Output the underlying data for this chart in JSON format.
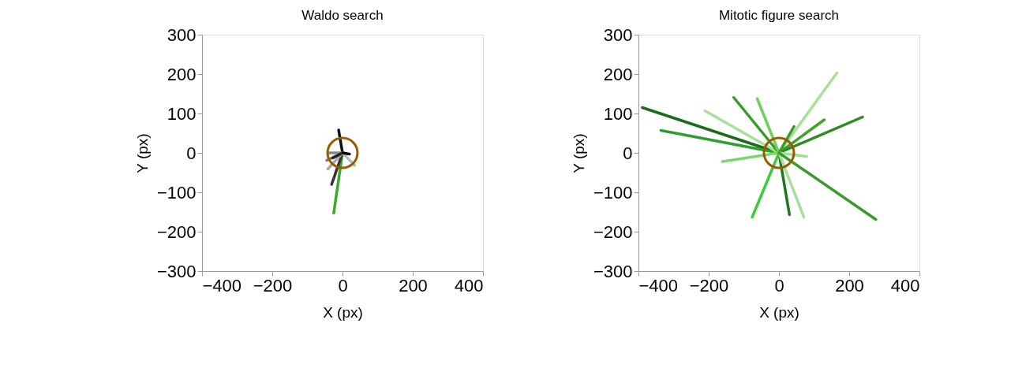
{
  "chart_data": [
    {
      "type": "line",
      "title": "Waldo search",
      "xlabel": "X (px)",
      "ylabel": "Y (px)",
      "xlim": [
        -400,
        400
      ],
      "ylim": [
        -300,
        300
      ],
      "xticks": [
        -400,
        -200,
        0,
        200,
        400
      ],
      "yticks": [
        -300,
        -200,
        -100,
        0,
        100,
        200,
        300
      ],
      "grid": false,
      "legend": false,
      "line_style": "solid",
      "series": [
        {
          "color": "#3aaa2a",
          "x": [
            -25,
            0
          ],
          "values": [
            -153,
            0
          ]
        },
        {
          "color": "#111111",
          "x": [
            -11,
            0
          ],
          "values": [
            58,
            0
          ]
        },
        {
          "color": "#333333",
          "x": [
            -31,
            0
          ],
          "values": [
            -80,
            0
          ]
        },
        {
          "color": "#aaaaaa",
          "x": [
            -42,
            0
          ],
          "values": [
            -41,
            0
          ]
        },
        {
          "color": "#777777",
          "x": [
            -45,
            0
          ],
          "values": [
            -19,
            0
          ]
        },
        {
          "color": "#888888",
          "x": [
            -40,
            0
          ],
          "values": [
            0,
            0
          ]
        },
        {
          "color": "#222222",
          "x": [
            -28,
            0
          ],
          "values": [
            -13,
            0
          ]
        },
        {
          "color": "#bbbbbb",
          "x": [
            35,
            0
          ],
          "values": [
            -32,
            0
          ]
        },
        {
          "color": "#000000",
          "x": [
            20,
            0
          ],
          "values": [
            -3,
            0
          ]
        }
      ]
    },
    {
      "type": "line",
      "title": "Mitotic figure search",
      "xlabel": "X (px)",
      "ylabel": "Y (px)",
      "xlim": [
        -400,
        400
      ],
      "ylim": [
        -300,
        300
      ],
      "xticks": [
        -400,
        -200,
        0,
        200,
        400
      ],
      "yticks": [
        -300,
        -200,
        -100,
        0,
        100,
        200,
        300
      ],
      "grid": false,
      "legend": false,
      "line_style": "solid",
      "series": [
        {
          "color": "#1a6b1a",
          "x": [
            -389,
            0
          ],
          "values": [
            115,
            0
          ]
        },
        {
          "color": "#2e9e2e",
          "x": [
            -336,
            0
          ],
          "values": [
            57,
            0
          ]
        },
        {
          "color": "#a8e09a",
          "x": [
            -211,
            0
          ],
          "values": [
            107,
            0
          ]
        },
        {
          "color": "#3a9a2a",
          "x": [
            -129,
            0
          ],
          "values": [
            141,
            0
          ]
        },
        {
          "color": "#6fcf5f",
          "x": [
            -62,
            0
          ],
          "values": [
            138,
            0
          ]
        },
        {
          "color": "#a8e09a",
          "x": [
            165,
            0
          ],
          "values": [
            203,
            0
          ]
        },
        {
          "color": "#3a9a2a",
          "x": [
            43,
            0
          ],
          "values": [
            67,
            0
          ]
        },
        {
          "color": "#3da52a",
          "x": [
            129,
            0
          ],
          "values": [
            84,
            0
          ]
        },
        {
          "color": "#2f8a22",
          "x": [
            238,
            0
          ],
          "values": [
            91,
            0
          ]
        },
        {
          "color": "#7ed66e",
          "x": [
            -161,
            0
          ],
          "values": [
            -22,
            0
          ]
        },
        {
          "color": "#a0e090",
          "x": [
            79,
            0
          ],
          "values": [
            -9,
            0
          ]
        },
        {
          "color": "#3ccc3c",
          "x": [
            -76,
            0
          ],
          "values": [
            -163,
            0
          ]
        },
        {
          "color": "#1f7a1f",
          "x": [
            30,
            0
          ],
          "values": [
            -157,
            0
          ]
        },
        {
          "color": "#a8e09a",
          "x": [
            71,
            0
          ],
          "values": [
            -163,
            0
          ]
        },
        {
          "color": "#3a9a2a",
          "x": [
            276,
            0
          ],
          "values": [
            -169,
            0
          ]
        }
      ]
    }
  ]
}
